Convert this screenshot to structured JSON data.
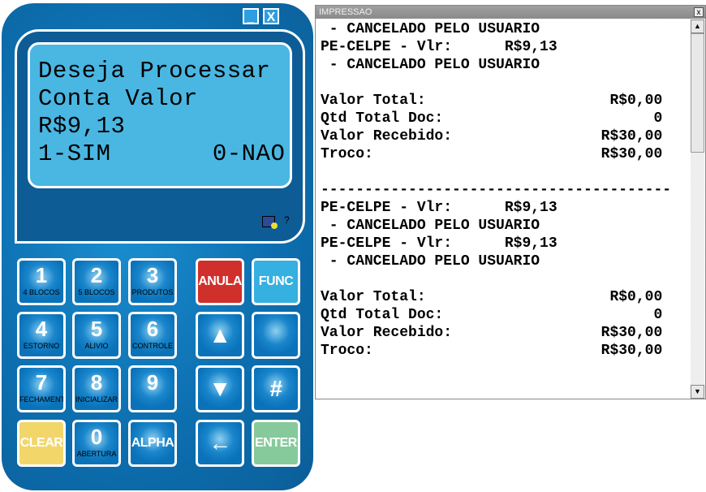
{
  "terminal": {
    "minimize_label": "_",
    "close_label": "X",
    "lcd_lines": [
      "Deseja Processar",
      "Conta Valor",
      "R$9,13",
      "1-SIM       0-NAO"
    ],
    "help_label": "?",
    "keys": [
      {
        "main": "1",
        "sub": "4 BLOCOS"
      },
      {
        "main": "2",
        "sub": "5 BLOCOS"
      },
      {
        "main": "3",
        "sub": "PRODUTOS"
      },
      {
        "main": "ANULA"
      },
      {
        "main": "FUNC"
      },
      {
        "main": "4",
        "sub": "ESTORNO"
      },
      {
        "main": "5",
        "sub": "ALIVIO"
      },
      {
        "main": "6",
        "sub": "CONTROLE"
      },
      {
        "main": "▲"
      },
      {
        "main": ""
      },
      {
        "main": "7",
        "sub": "FECHAMENT"
      },
      {
        "main": "8",
        "sub": "INICIALIZAR"
      },
      {
        "main": "9",
        "sub": ""
      },
      {
        "main": "▼"
      },
      {
        "main": "#"
      },
      {
        "main": "CLEAR"
      },
      {
        "main": "0",
        "sub": "ABERTURA"
      },
      {
        "main": "ALPHA"
      },
      {
        "main": "←"
      },
      {
        "main": "ENTER"
      }
    ],
    "colors": {
      "body": "#0d6fb0",
      "lcd": "#4ab6e2",
      "anula": "#d0302c",
      "func": "#36b0e0",
      "clear": "#f2d66a",
      "enter": "#86c99a"
    }
  },
  "print_window": {
    "title": "IMPRESSAO",
    "close_label": "x",
    "lines": [
      " - CANCELADO PELO USUARIO",
      "PE-CELPE - Vlr:      R$9,13",
      " - CANCELADO PELO USUARIO",
      "",
      "Valor Total:                     R$0,00",
      "Qtd Total Doc:                        0",
      "Valor Recebido:                 R$30,00",
      "Troco:                          R$30,00",
      "",
      "----------------------------------------",
      "PE-CELPE - Vlr:      R$9,13",
      " - CANCELADO PELO USUARIO",
      "PE-CELPE - Vlr:      R$9,13",
      " - CANCELADO PELO USUARIO",
      "",
      "Valor Total:                     R$0,00",
      "Qtd Total Doc:                        0",
      "Valor Recebido:                 R$30,00",
      "Troco:                          R$30,00"
    ]
  }
}
